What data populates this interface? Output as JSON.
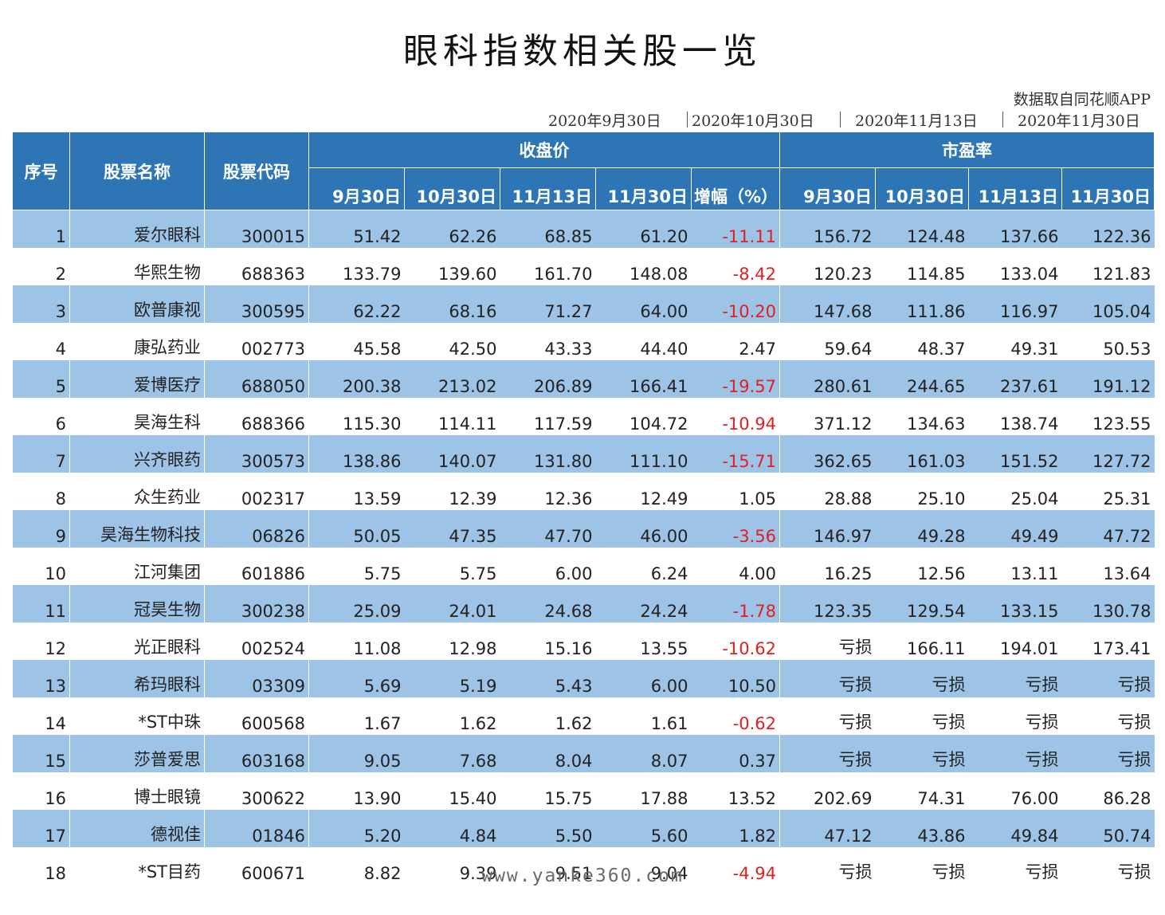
{
  "title": "眼科指数相关股一览",
  "source_note": "数据取自同花顺APP",
  "dates": [
    "2020年9月30日",
    "2020年10月30日",
    "2020年11月13日",
    "2020年11月30日"
  ],
  "header": {
    "index": "序号",
    "name": "股票名称",
    "code": "股票代码",
    "close_group": "收盘价",
    "pe_group": "市盈率",
    "close_cols": [
      "9月30日",
      "10月30日",
      "11月13日",
      "11月30日",
      "增幅（%）"
    ],
    "pe_cols": [
      "9月30日",
      "10月30日",
      "11月13日",
      "11月30日"
    ]
  },
  "rows": [
    {
      "n": "1",
      "name": "爱尔眼科",
      "code": "300015",
      "c": [
        "51.42",
        "62.26",
        "68.85",
        "61.20"
      ],
      "chg": "-11.11",
      "pe": [
        "156.72",
        "124.48",
        "137.66",
        "122.36"
      ]
    },
    {
      "n": "2",
      "name": "华熙生物",
      "code": "688363",
      "c": [
        "133.79",
        "139.60",
        "161.70",
        "148.08"
      ],
      "chg": "-8.42",
      "pe": [
        "120.23",
        "114.85",
        "133.04",
        "121.83"
      ]
    },
    {
      "n": "3",
      "name": "欧普康视",
      "code": "300595",
      "c": [
        "62.22",
        "68.16",
        "71.27",
        "64.00"
      ],
      "chg": "-10.20",
      "pe": [
        "147.68",
        "111.86",
        "116.97",
        "105.04"
      ]
    },
    {
      "n": "4",
      "name": "康弘药业",
      "code": "002773",
      "c": [
        "45.58",
        "42.50",
        "43.33",
        "44.40"
      ],
      "chg": "2.47",
      "pe": [
        "59.64",
        "48.37",
        "49.31",
        "50.53"
      ]
    },
    {
      "n": "5",
      "name": "爱博医疗",
      "code": "688050",
      "c": [
        "200.38",
        "213.02",
        "206.89",
        "166.41"
      ],
      "chg": "-19.57",
      "pe": [
        "280.61",
        "244.65",
        "237.61",
        "191.12"
      ]
    },
    {
      "n": "6",
      "name": "昊海生科",
      "code": "688366",
      "c": [
        "115.30",
        "114.11",
        "117.59",
        "104.72"
      ],
      "chg": "-10.94",
      "pe": [
        "371.12",
        "134.63",
        "138.74",
        "123.55"
      ]
    },
    {
      "n": "7",
      "name": "兴齐眼药",
      "code": "300573",
      "c": [
        "138.86",
        "140.07",
        "131.80",
        "111.10"
      ],
      "chg": "-15.71",
      "pe": [
        "362.65",
        "161.03",
        "151.52",
        "127.72"
      ]
    },
    {
      "n": "8",
      "name": "众生药业",
      "code": "002317",
      "c": [
        "13.59",
        "12.39",
        "12.36",
        "12.49"
      ],
      "chg": "1.05",
      "pe": [
        "28.88",
        "25.10",
        "25.04",
        "25.31"
      ]
    },
    {
      "n": "9",
      "name": "昊海生物科技",
      "code": "06826",
      "c": [
        "50.05",
        "47.35",
        "47.70",
        "46.00"
      ],
      "chg": "-3.56",
      "pe": [
        "146.97",
        "49.28",
        "49.49",
        "47.72"
      ]
    },
    {
      "n": "10",
      "name": "江河集团",
      "code": "601886",
      "c": [
        "5.75",
        "5.75",
        "6.00",
        "6.24"
      ],
      "chg": "4.00",
      "pe": [
        "16.25",
        "12.56",
        "13.11",
        "13.64"
      ]
    },
    {
      "n": "11",
      "name": "冠昊生物",
      "code": "300238",
      "c": [
        "25.09",
        "24.01",
        "24.68",
        "24.24"
      ],
      "chg": "-1.78",
      "pe": [
        "123.35",
        "129.54",
        "133.15",
        "130.78"
      ]
    },
    {
      "n": "12",
      "name": "光正眼科",
      "code": "002524",
      "c": [
        "11.08",
        "12.98",
        "15.16",
        "13.55"
      ],
      "chg": "-10.62",
      "pe": [
        "亏损",
        "166.11",
        "194.01",
        "173.41"
      ]
    },
    {
      "n": "13",
      "name": "希玛眼科",
      "code": "03309",
      "c": [
        "5.69",
        "5.19",
        "5.43",
        "6.00"
      ],
      "chg": "10.50",
      "pe": [
        "亏损",
        "亏损",
        "亏损",
        "亏损"
      ]
    },
    {
      "n": "14",
      "name": "*ST中珠",
      "code": "600568",
      "c": [
        "1.67",
        "1.62",
        "1.62",
        "1.61"
      ],
      "chg": "-0.62",
      "pe": [
        "亏损",
        "亏损",
        "亏损",
        "亏损"
      ]
    },
    {
      "n": "15",
      "name": "莎普爱思",
      "code": "603168",
      "c": [
        "9.05",
        "7.68",
        "8.04",
        "8.07"
      ],
      "chg": "0.37",
      "pe": [
        "亏损",
        "亏损",
        "亏损",
        "亏损"
      ]
    },
    {
      "n": "16",
      "name": "博士眼镜",
      "code": "300622",
      "c": [
        "13.90",
        "15.40",
        "15.75",
        "17.88"
      ],
      "chg": "13.52",
      "pe": [
        "202.69",
        "74.31",
        "76.00",
        "86.28"
      ]
    },
    {
      "n": "17",
      "name": "德视佳",
      "code": "01846",
      "c": [
        "5.20",
        "4.84",
        "5.50",
        "5.60"
      ],
      "chg": "1.82",
      "pe": [
        "47.12",
        "43.86",
        "49.84",
        "50.74"
      ]
    },
    {
      "n": "18",
      "name": "*ST目药",
      "code": "600671",
      "c": [
        "8.82",
        "9.39",
        "9.51",
        "9.04"
      ],
      "chg": "-4.94",
      "pe": [
        "亏损",
        "亏损",
        "亏损",
        "亏损"
      ]
    }
  ],
  "watermark": "www.yanke360.com",
  "colors": {
    "header_bg": "#2e75b6",
    "stripe_bg": "#9dc3e6",
    "negative": "#e02020"
  }
}
